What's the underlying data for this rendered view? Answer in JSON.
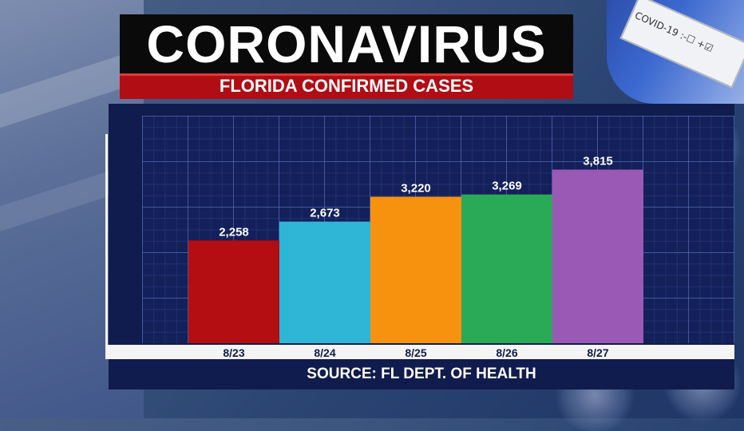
{
  "header": {
    "title": "CORONAVIRUS",
    "subtitle": "FLORIDA CONFIRMED CASES"
  },
  "decor": {
    "tube_label": "COVID-19  :-☐ +☑",
    "icons": [
      "test-tube-icon",
      "virus-icon"
    ]
  },
  "footer": {
    "source": "SOURCE: FL DEPT. OF HEALTH"
  },
  "colors": {
    "title_bg": "#0a0a0a",
    "subtitle_bg": "#b00d14",
    "panel_bg": "#101c4d"
  },
  "chart_data": {
    "type": "bar",
    "title": "FLORIDA CONFIRMED CASES",
    "categories": [
      "8/23",
      "8/24",
      "8/25",
      "8/26",
      "8/27"
    ],
    "values": [
      2258,
      2673,
      3220,
      3269,
      3815
    ],
    "value_labels": [
      "2,258",
      "2,673",
      "3,220",
      "3,269",
      "3,815"
    ],
    "colors": [
      "#b40d12",
      "#2fb6d6",
      "#f7920f",
      "#2aaa57",
      "#9b59b6"
    ],
    "xlabel": "",
    "ylabel": "",
    "ylim": [
      0,
      5000
    ],
    "grid": true,
    "legend": "none"
  }
}
